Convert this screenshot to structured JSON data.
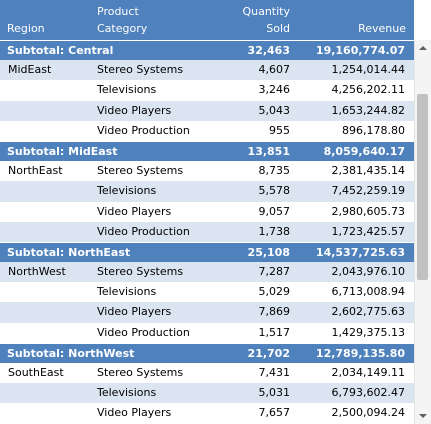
{
  "header": {
    "region": "Region",
    "product_line1": "Product",
    "product_line2": "Category",
    "qty_line1": "Quantity",
    "qty_line2": "Sold",
    "revenue": "Revenue"
  },
  "rows": [
    {
      "type": "sub",
      "region": "Subtotal: Central",
      "product": "",
      "qty": "32,463",
      "revenue": "19,160,774.07"
    },
    {
      "type": "light",
      "region": "MidEast",
      "product": "Stereo Systems",
      "qty": "4,607",
      "revenue": "1,254,014.44"
    },
    {
      "type": "white",
      "region": "",
      "product": "Televisions",
      "qty": "3,246",
      "revenue": "4,256,202.11"
    },
    {
      "type": "light",
      "region": "",
      "product": "Video Players",
      "qty": "5,043",
      "revenue": "1,653,244.82"
    },
    {
      "type": "white",
      "region": "",
      "product": "Video Production",
      "qty": "955",
      "revenue": "896,178.80"
    },
    {
      "type": "sub",
      "region": "Subtotal: MidEast",
      "product": "",
      "qty": "13,851",
      "revenue": "8,059,640.17"
    },
    {
      "type": "white",
      "region": "NorthEast",
      "product": "Stereo Systems",
      "qty": "8,735",
      "revenue": "2,381,435.14"
    },
    {
      "type": "light",
      "region": "",
      "product": "Televisions",
      "qty": "5,578",
      "revenue": "7,452,259.19"
    },
    {
      "type": "white",
      "region": "",
      "product": "Video Players",
      "qty": "9,057",
      "revenue": "2,980,605.73"
    },
    {
      "type": "light",
      "region": "",
      "product": "Video Production",
      "qty": "1,738",
      "revenue": "1,723,425.57"
    },
    {
      "type": "sub",
      "region": "Subtotal: NorthEast",
      "product": "",
      "qty": "25,108",
      "revenue": "14,537,725.63"
    },
    {
      "type": "light",
      "region": "NorthWest",
      "product": "Stereo Systems",
      "qty": "7,287",
      "revenue": "2,043,976.10"
    },
    {
      "type": "white",
      "region": "",
      "product": "Televisions",
      "qty": "5,029",
      "revenue": "6,713,008.94"
    },
    {
      "type": "light",
      "region": "",
      "product": "Video Players",
      "qty": "7,869",
      "revenue": "2,602,775.63"
    },
    {
      "type": "white",
      "region": "",
      "product": "Video Production",
      "qty": "1,517",
      "revenue": "1,429,375.13"
    },
    {
      "type": "sub",
      "region": "Subtotal: NorthWest",
      "product": "",
      "qty": "21,702",
      "revenue": "12,789,135.80"
    },
    {
      "type": "white",
      "region": "SouthEast",
      "product": "Stereo Systems",
      "qty": "7,431",
      "revenue": "2,034,149.11"
    },
    {
      "type": "light",
      "region": "",
      "product": "Televisions",
      "qty": "5,031",
      "revenue": "6,793,602.47"
    },
    {
      "type": "white",
      "region": "",
      "product": "Video Players",
      "qty": "7,657",
      "revenue": "2,500,094.24"
    }
  ],
  "colors": {
    "header_bg": "#4f81bd",
    "band_light": "#dbe5f1",
    "band_white": "#ffffff"
  },
  "icons": {
    "scroll_up": "chevron-up-icon",
    "scroll_down": "chevron-down-icon"
  }
}
